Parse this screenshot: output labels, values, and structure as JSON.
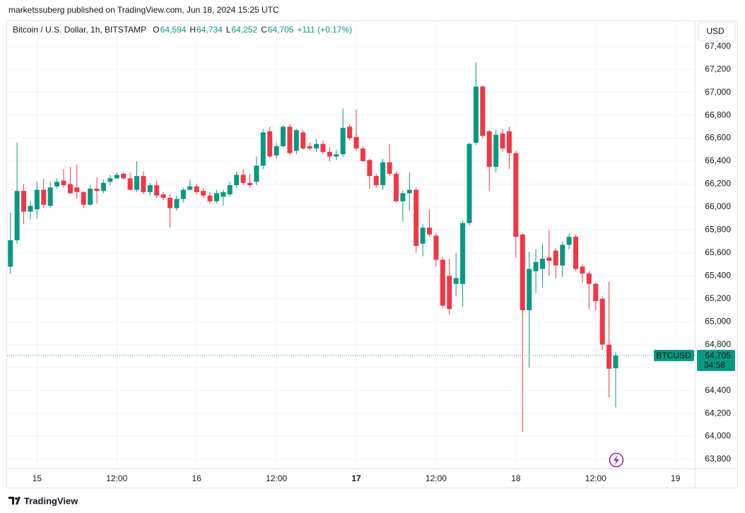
{
  "chart_data": {
    "type": "candlestick",
    "publisher": "marketssuberg published on TradingView.com, Jun 18, 2024 15:25 UTC",
    "title": "Bitcoin / U.S. Dollar, 1h, BITSTAMP",
    "ohlc_legend": [
      {
        "label": "O",
        "value": "64,594"
      },
      {
        "label": "H",
        "value": "64,734"
      },
      {
        "label": "L",
        "value": "64,252"
      },
      {
        "label": "C",
        "value": "64,705"
      }
    ],
    "change": "+111 (+0.17%)",
    "currency": "USD",
    "symbol_tag": "BTCUSD",
    "last_price_label": "64,705",
    "countdown": "34:58",
    "brand": "TradingView",
    "up_color": "#089981",
    "down_color": "#f23645",
    "grid": true,
    "open": [
      65480,
      65710,
      66140,
      65960,
      65980,
      66150,
      66010,
      66180,
      66230,
      66200,
      66170,
      66130,
      66020,
      66160,
      66140,
      66220,
      66250,
      66290,
      66250,
      66150,
      66270,
      66130,
      66190,
      66110,
      66080,
      65990,
      66070,
      66150,
      66180,
      66140,
      66100,
      66050,
      66090,
      66110,
      66190,
      66280,
      66210,
      66220,
      66360,
      66660,
      66450,
      66530,
      66700,
      66490,
      66650,
      66530,
      66510,
      66550,
      66480,
      66440,
      66460,
      66700,
      66610,
      66510,
      66410,
      66270,
      66190,
      66390,
      66290,
      66050,
      66120,
      66150,
      65680,
      65820,
      65750,
      65540,
      65400,
      65330,
      65330,
      65860,
      66560,
      67050,
      66660,
      66350,
      66640,
      66660,
      66470,
      65760,
      65100,
      65440,
      65460,
      65560,
      65620,
      65490,
      65670,
      65740,
      65480,
      65420,
      65330,
      65200,
      64800,
      64594
    ],
    "high": [
      65950,
      66560,
      66200,
      66050,
      66220,
      66250,
      66220,
      66250,
      66330,
      66350,
      66370,
      66140,
      66190,
      66260,
      66240,
      66280,
      66300,
      66300,
      66300,
      66400,
      66310,
      66210,
      66230,
      66130,
      66110,
      66100,
      66170,
      66240,
      66200,
      66160,
      66130,
      66150,
      66150,
      66220,
      66310,
      66330,
      66290,
      66440,
      66680,
      66700,
      66560,
      66710,
      66720,
      66680,
      66670,
      66560,
      66590,
      66580,
      66520,
      66500,
      66860,
      66720,
      66850,
      66530,
      66420,
      66290,
      66420,
      66550,
      66310,
      66140,
      66300,
      66170,
      65850,
      65980,
      65770,
      65560,
      65550,
      65600,
      65880,
      66560,
      67260,
      67060,
      66670,
      66670,
      66680,
      66700,
      66490,
      65770,
      65610,
      65630,
      65680,
      65800,
      65640,
      65700,
      65770,
      65760,
      65500,
      65440,
      65340,
      65220,
      65350,
      64734
    ],
    "low": [
      65420,
      65680,
      65850,
      65890,
      65900,
      65990,
      65990,
      66160,
      66170,
      66110,
      66070,
      65990,
      66010,
      66030,
      66120,
      66190,
      66250,
      66240,
      66140,
      66130,
      66110,
      66100,
      66080,
      66060,
      65820,
      65970,
      66040,
      66140,
      66110,
      66080,
      66030,
      66030,
      66010,
      66090,
      66170,
      66190,
      66170,
      66190,
      66330,
      66430,
      66420,
      66520,
      66450,
      66460,
      66500,
      66490,
      66480,
      66460,
      66400,
      66410,
      66440,
      66580,
      66490,
      66390,
      66160,
      66170,
      66150,
      66270,
      66040,
      65870,
      65970,
      65600,
      65570,
      65740,
      65480,
      65120,
      65060,
      65220,
      65130,
      65840,
      66540,
      66600,
      66140,
      66300,
      66480,
      66330,
      65560,
      64040,
      64600,
      65250,
      65300,
      65400,
      65380,
      65390,
      65630,
      65440,
      65340,
      65110,
      65100,
      64750,
      64340,
      64252
    ],
    "close": [
      65710,
      66140,
      65960,
      66010,
      66150,
      66020,
      66170,
      66220,
      66190,
      66120,
      66130,
      66020,
      66160,
      66140,
      66210,
      66250,
      66280,
      66250,
      66150,
      66270,
      66130,
      66190,
      66100,
      66080,
      65990,
      66070,
      66150,
      66180,
      66130,
      66100,
      66050,
      66120,
      66130,
      66190,
      66280,
      66210,
      66190,
      66360,
      66650,
      66440,
      66530,
      66700,
      66470,
      66670,
      66510,
      66510,
      66550,
      66480,
      66440,
      66460,
      66690,
      66600,
      66510,
      66400,
      66270,
      66190,
      66390,
      66290,
      66050,
      66120,
      66150,
      65660,
      65820,
      65760,
      65540,
      65140,
      65110,
      65380,
      65860,
      66550,
      67050,
      66620,
      66350,
      66630,
      66510,
      66470,
      65740,
      65100,
      65460,
      65520,
      65550,
      65530,
      65490,
      65670,
      65740,
      65460,
      65420,
      65330,
      65180,
      64800,
      64590,
      64705
    ],
    "xlim": [
      -0.5,
      102.9
    ],
    "xticks": [
      {
        "value": 4,
        "label": "15"
      },
      {
        "value": 16,
        "label": "12:00"
      },
      {
        "value": 28,
        "label": "16"
      },
      {
        "value": 40,
        "label": "12:00"
      },
      {
        "value": 52,
        "label": "17",
        "bold": true
      },
      {
        "value": 64,
        "label": "12:00"
      },
      {
        "value": 76,
        "label": "18"
      },
      {
        "value": 88,
        "label": "12:00"
      },
      {
        "value": 100,
        "label": "19"
      }
    ],
    "ylim": [
      63720,
      67620
    ],
    "yticks": [
      {
        "value": 63800,
        "label": "63,800"
      },
      {
        "value": 64000,
        "label": "64,000"
      },
      {
        "value": 64200,
        "label": "64,200"
      },
      {
        "value": 64400,
        "label": "64,400"
      },
      {
        "value": 64600,
        "label": "64,600"
      },
      {
        "value": 64800,
        "label": "64,800"
      },
      {
        "value": 65000,
        "label": "65,000"
      },
      {
        "value": 65200,
        "label": "65,200"
      },
      {
        "value": 65400,
        "label": "65,400"
      },
      {
        "value": 65600,
        "label": "65,600"
      },
      {
        "value": 65800,
        "label": "65,800"
      },
      {
        "value": 66000,
        "label": "66,000"
      },
      {
        "value": 66200,
        "label": "66,200"
      },
      {
        "value": 66400,
        "label": "66,400"
      },
      {
        "value": 66600,
        "label": "66,600"
      },
      {
        "value": 66800,
        "label": "66,800"
      },
      {
        "value": 67000,
        "label": "67,000"
      },
      {
        "value": 67200,
        "label": "67,200"
      },
      {
        "value": 67400,
        "label": "67,400"
      }
    ]
  }
}
